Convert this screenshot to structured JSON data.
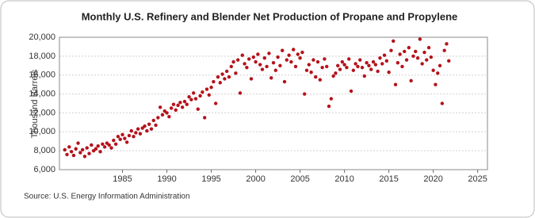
{
  "chart_data": {
    "type": "scatter",
    "title": "Monthly U.S. Refinery and Blender Net Production of Propane and Propylene",
    "y_label": "Thousand Barrels",
    "source": "Source: U.S. Energy Information Administration",
    "color": "#b5121b",
    "grid": true,
    "xlim": [
      1977.9,
      2026.1
    ],
    "xticks": [
      1985,
      1990,
      1995,
      2000,
      2005,
      2010,
      2015,
      2020,
      2025
    ],
    "ylim": [
      6000,
      20000
    ],
    "yticks": [
      {
        "value": 6000,
        "label": "6,000"
      },
      {
        "value": 8000,
        "label": "8,000"
      },
      {
        "value": 10000,
        "label": "10,000"
      },
      {
        "value": 12000,
        "label": "12,000"
      },
      {
        "value": 14000,
        "label": "14,000"
      },
      {
        "value": 16000,
        "label": "16,000"
      },
      {
        "value": 18000,
        "label": "18,000"
      },
      {
        "value": 20000,
        "label": "20,000"
      }
    ],
    "x": [
      1978.5,
      1978.75,
      1979,
      1979.25,
      1979.5,
      1979.75,
      1980,
      1980.25,
      1980.5,
      1980.75,
      1981,
      1981.25,
      1981.5,
      1981.75,
      1982,
      1982.25,
      1982.5,
      1982.75,
      1983,
      1983.25,
      1983.5,
      1983.75,
      1984,
      1984.25,
      1984.5,
      1984.75,
      1985,
      1985.25,
      1985.5,
      1985.75,
      1986,
      1986.25,
      1986.5,
      1986.75,
      1987,
      1987.25,
      1987.5,
      1987.75,
      1988,
      1988.25,
      1988.5,
      1988.75,
      1989,
      1989.25,
      1989.5,
      1989.75,
      1990,
      1990.25,
      1990.5,
      1990.75,
      1991,
      1991.25,
      1991.5,
      1991.75,
      1992,
      1992.25,
      1992.5,
      1992.75,
      1993,
      1993.25,
      1993.5,
      1993.75,
      1994,
      1994.25,
      1994.5,
      1994.75,
      1995,
      1995.25,
      1995.5,
      1995.75,
      1996,
      1996.25,
      1996.5,
      1996.75,
      1997,
      1997.25,
      1997.5,
      1997.75,
      1998,
      1998.25,
      1998.5,
      1998.75,
      1999,
      1999.25,
      1999.5,
      1999.75,
      2000,
      2000.25,
      2000.5,
      2000.75,
      2001,
      2001.25,
      2001.5,
      2001.75,
      2002,
      2002.25,
      2002.5,
      2002.75,
      2003,
      2003.25,
      2003.5,
      2003.75,
      2004,
      2004.25,
      2004.5,
      2004.75,
      2005,
      2005.25,
      2005.5,
      2005.75,
      2006,
      2006.25,
      2006.5,
      2006.75,
      2007,
      2007.25,
      2007.5,
      2007.75,
      2008,
      2008.25,
      2008.5,
      2008.75,
      2009,
      2009.25,
      2009.5,
      2009.75,
      2010,
      2010.25,
      2010.5,
      2010.75,
      2011,
      2011.25,
      2011.5,
      2011.75,
      2012,
      2012.25,
      2012.5,
      2012.75,
      2013,
      2013.25,
      2013.5,
      2013.75,
      2014,
      2014.25,
      2014.5,
      2014.75,
      2015,
      2015.25,
      2015.5,
      2015.75,
      2016,
      2016.25,
      2016.5,
      2016.75,
      2017,
      2017.25,
      2017.5,
      2017.75,
      2018,
      2018.25,
      2018.5,
      2018.75,
      2019,
      2019.25,
      2019.5,
      2019.75,
      2020,
      2020.25,
      2020.5,
      2020.75,
      2021,
      2021.25,
      2021.5,
      2021.75
    ],
    "values": [
      8100,
      7600,
      8400,
      7900,
      7500,
      8200,
      8800,
      7800,
      8100,
      7400,
      8300,
      7700,
      8600,
      8000,
      8200,
      8500,
      7900,
      8700,
      8400,
      8800,
      8600,
      8300,
      9100,
      8700,
      9500,
      9200,
      9700,
      9300,
      8900,
      9600,
      10100,
      9500,
      9900,
      10300,
      9800,
      10400,
      10600,
      10100,
      10800,
      10300,
      11200,
      10700,
      11500,
      12600,
      11800,
      12200,
      12000,
      11600,
      12500,
      12900,
      12300,
      12800,
      13100,
      12600,
      13200,
      12900,
      13700,
      13400,
      14100,
      13500,
      12400,
      13800,
      14200,
      11500,
      14500,
      13900,
      14700,
      15300,
      13000,
      15800,
      15200,
      16100,
      15600,
      16400,
      15800,
      16900,
      17400,
      16200,
      17600,
      14100,
      18100,
      17200,
      16800,
      17700,
      15600,
      17900,
      17400,
      18200,
      17100,
      16600,
      17800,
      16900,
      18300,
      15700,
      17300,
      16500,
      17900,
      17000,
      18600,
      15300,
      17600,
      18100,
      17400,
      18700,
      16900,
      18200,
      17800,
      18400,
      14000,
      16500,
      17100,
      16300,
      17600,
      15800,
      17400,
      15500,
      16800,
      17700,
      16900,
      12700,
      13500,
      15900,
      16200,
      17000,
      16600,
      17400,
      17100,
      16800,
      17700,
      14300,
      16500,
      17200,
      16900,
      17600,
      16800,
      15900,
      17300,
      17000,
      16600,
      17400,
      17100,
      16400,
      17800,
      17200,
      18100,
      17500,
      16300,
      18600,
      19600,
      15000,
      17300,
      18200,
      16900,
      18500,
      17600,
      18900,
      15400,
      18000,
      18500,
      17800,
      19800,
      17200,
      18400,
      17600,
      18900,
      17900,
      16500,
      15000,
      16200,
      17000,
      13000,
      18600,
      19300,
      17500
    ]
  }
}
